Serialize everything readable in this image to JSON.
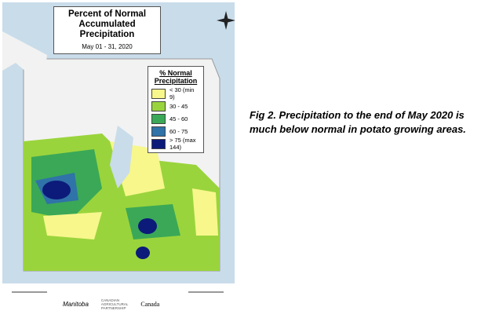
{
  "map": {
    "title": "Percent of Normal Accumulated Precipitation",
    "subtitle": "May 01 - 31, 2020",
    "legend": {
      "title": "% Normal Precipitation",
      "items": [
        {
          "label": "< 30 (min 9)",
          "color": "#f7f78c"
        },
        {
          "label": "30 - 45",
          "color": "#9ad43c"
        },
        {
          "label": "45 - 60",
          "color": "#3aa857"
        },
        {
          "label": "60 - 75",
          "color": "#2f73a8"
        },
        {
          "label": "> 75 (max 144)",
          "color": "#0c1a7a"
        }
      ]
    },
    "logos": [
      "Manitoba",
      "CANADIAN",
      "AGRICULTURAL",
      "PARTNERSHIP",
      "Canada"
    ]
  },
  "caption": "Fig 2. Precipitation to the end of May 2020 is much below normal in potato growing areas."
}
